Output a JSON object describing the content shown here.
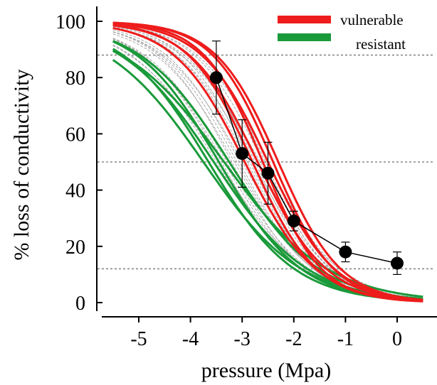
{
  "chart_data": {
    "type": "line",
    "xlabel": "pressure (Mpa)",
    "ylabel": "% loss of conductivity",
    "xlim": [
      -5.6,
      0.6
    ],
    "ylim": [
      -2,
      104
    ],
    "x_ticks": [
      -5,
      -4,
      -3,
      -2,
      -1,
      0
    ],
    "x_tick_labels": [
      "-5",
      "-4",
      "-3",
      "-2",
      "-1",
      "0"
    ],
    "y_ticks": [
      0,
      20,
      40,
      60,
      80,
      100
    ],
    "y_tick_labels": [
      "0",
      "20",
      "40",
      "60",
      "80",
      "100"
    ],
    "reference_lines_y": [
      88,
      50,
      12
    ],
    "legend": {
      "placement": "top-right",
      "entries": [
        {
          "label": "vulnerable",
          "color": "#ee1c1c"
        },
        {
          "label": "resistant",
          "color": "#1a9a3a"
        }
      ]
    },
    "curve_groups": [
      {
        "name": "vulnerable",
        "color": "#ee1c1c",
        "P50": [
          -2.95,
          -2.8,
          -2.7,
          -2.6,
          -2.5,
          -2.4,
          -2.3
        ],
        "slope": [
          1.45,
          1.6,
          1.5,
          1.75,
          1.55,
          1.7,
          1.65
        ]
      },
      {
        "name": "resistant",
        "color": "#1a9a3a",
        "P50": [
          -3.75,
          -3.65,
          -3.55,
          -3.45,
          -3.35,
          -3.25
        ],
        "slope": [
          1.05,
          1.2,
          1.1,
          1.25,
          1.0,
          1.15
        ]
      },
      {
        "name": "other",
        "color": "#a8a8a8",
        "P50": [
          -3.5,
          -3.4,
          -3.3,
          -3.2,
          -3.1,
          -3.0,
          -2.9,
          -2.8,
          -2.7,
          -2.6,
          -2.5,
          -3.45,
          -3.15,
          -2.85,
          -2.55,
          -3.35,
          -3.05,
          -2.75,
          -2.65
        ],
        "slope": [
          1.2,
          1.3,
          1.25,
          1.4,
          1.35,
          1.3,
          1.45,
          1.35,
          1.4,
          1.5,
          1.45,
          1.15,
          1.3,
          1.5,
          1.6,
          1.25,
          1.4,
          1.55,
          1.3
        ]
      }
    ],
    "mean_points": {
      "x": [
        -3.5,
        -3.0,
        -2.5,
        -2.0,
        -1.0,
        0.0
      ],
      "y": [
        80,
        53,
        46,
        29,
        18,
        14
      ],
      "err": [
        13,
        12,
        11,
        3.5,
        3.5,
        4.0
      ]
    }
  }
}
